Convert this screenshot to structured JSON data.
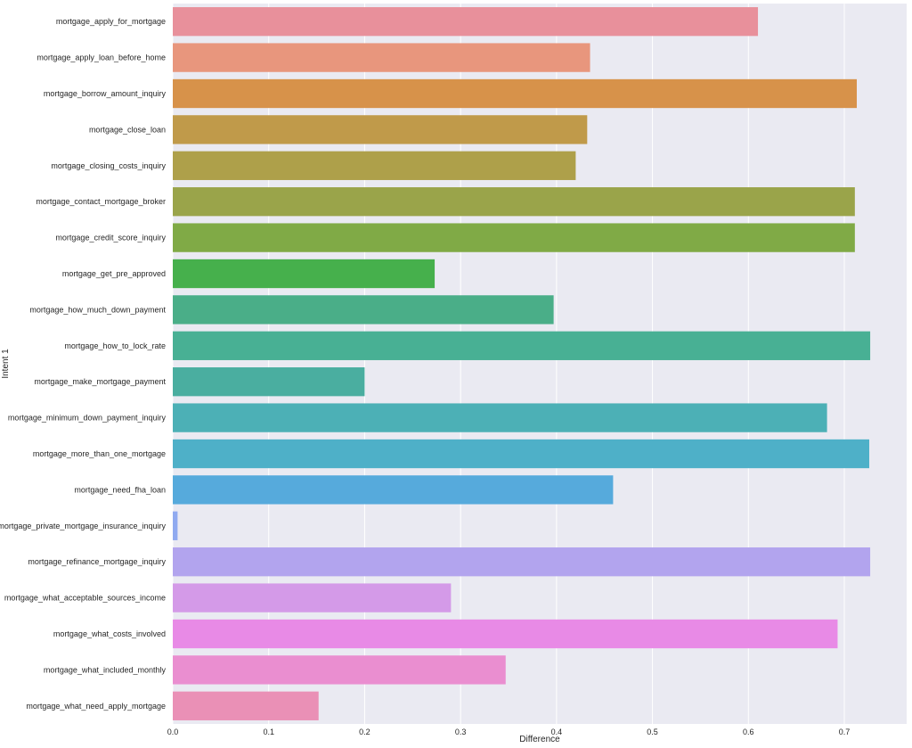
{
  "chart_data": {
    "type": "bar",
    "orientation": "horizontal",
    "xlabel": "Difference",
    "ylabel": "Intent 1",
    "xlim": [
      0.0,
      0.765
    ],
    "xticks": [
      "0.0",
      "0.1",
      "0.2",
      "0.3",
      "0.4",
      "0.5",
      "0.6",
      "0.7"
    ],
    "grid": true,
    "categories": [
      "mortgage_apply_for_mortgage",
      "mortgage_apply_loan_before_home",
      "mortgage_borrow_amount_inquiry",
      "mortgage_close_loan",
      "mortgage_closing_costs_inquiry",
      "mortgage_contact_mortgage_broker",
      "mortgage_credit_score_inquiry",
      "mortgage_get_pre_approved",
      "mortgage_how_much_down_payment",
      "mortgage_how_to_lock_rate",
      "mortgage_make_mortgage_payment",
      "mortgage_minimum_down_payment_inquiry",
      "mortgage_more_than_one_mortgage",
      "mortgage_need_fha_loan",
      "mortgage_private_mortgage_insurance_inquiry",
      "mortgage_refinance_mortgage_inquiry",
      "mortgage_what_acceptable_sources_income",
      "mortgage_what_costs_involved",
      "mortgage_what_included_monthly",
      "mortgage_what_need_apply_mortgage"
    ],
    "values": [
      0.61,
      0.435,
      0.713,
      0.432,
      0.42,
      0.711,
      0.711,
      0.273,
      0.397,
      0.727,
      0.2,
      0.682,
      0.726,
      0.459,
      0.005,
      0.727,
      0.29,
      0.693,
      0.347,
      0.152
    ],
    "colors": [
      "#e8909b",
      "#e8967d",
      "#d7924a",
      "#c09a4a",
      "#aea04a",
      "#9aa44a",
      "#80aa46",
      "#46b04c",
      "#4aae88",
      "#48b094",
      "#4aaea0",
      "#4cb0b6",
      "#4eb0c8",
      "#56aadc",
      "#90aaf0",
      "#b2a4ee",
      "#d49ae8",
      "#e88ae6",
      "#ea8ed0",
      "#ea90b6"
    ]
  }
}
